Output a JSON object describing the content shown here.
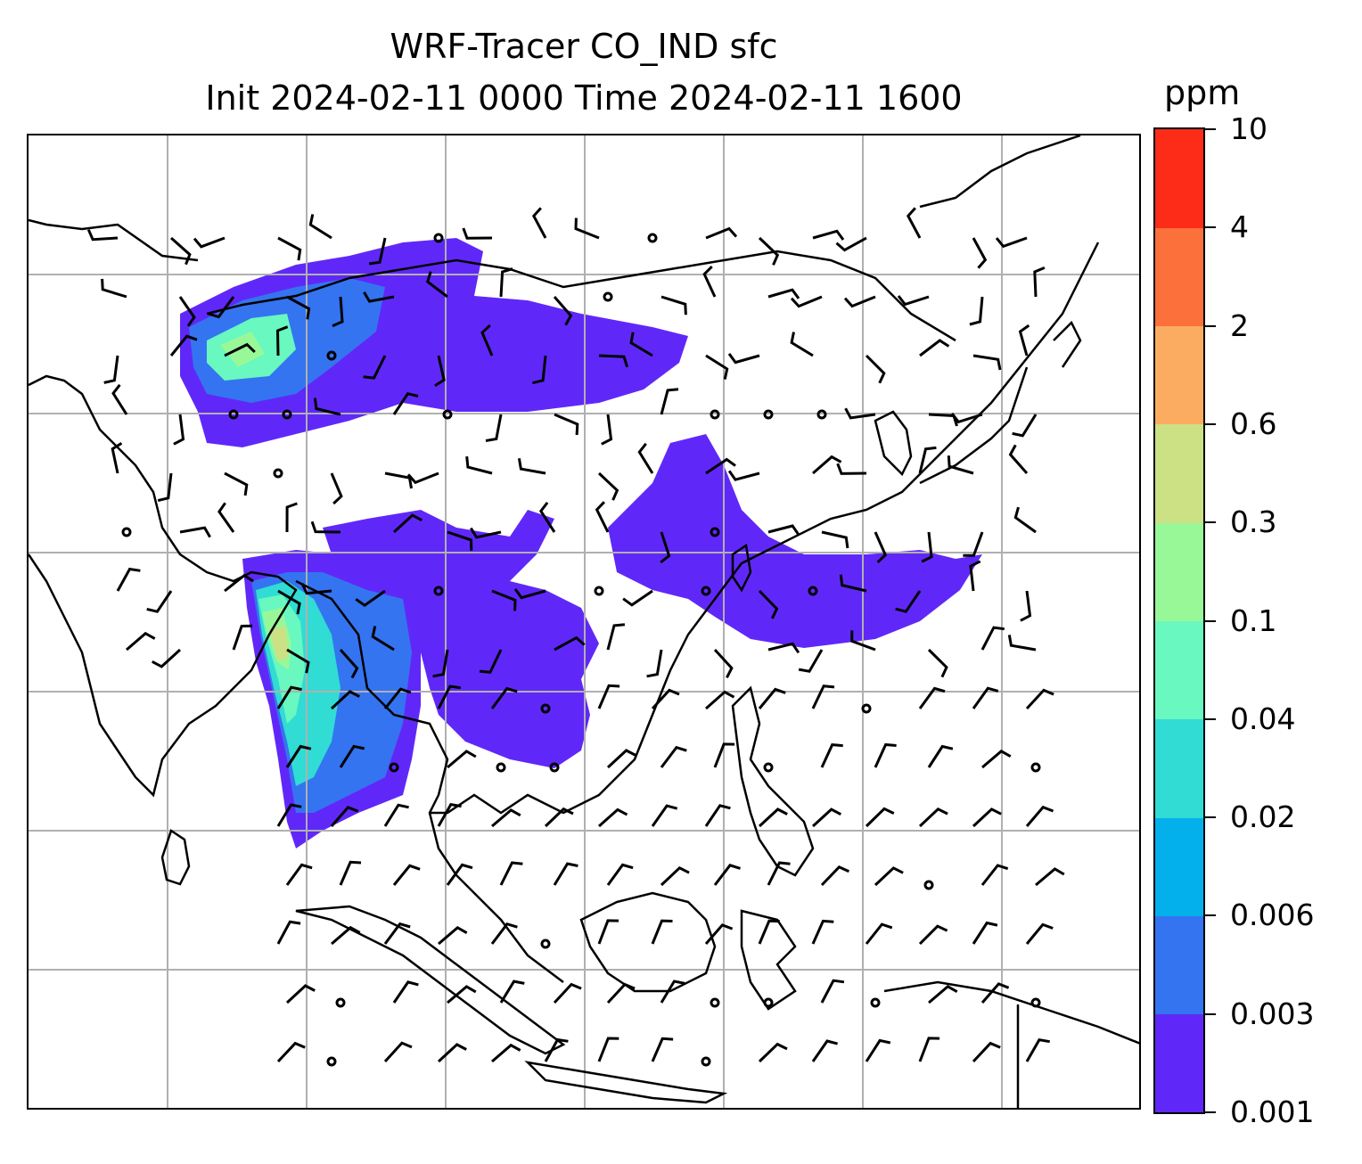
{
  "title": {
    "line1": "WRF-Tracer CO_IND sfc",
    "line2": "Init 2024-02-11 0000 Time 2024-02-11 1600"
  },
  "colorbar": {
    "unit_label": "ppm",
    "levels": [
      "0.001",
      "0.003",
      "0.006",
      "0.02",
      "0.04",
      "0.1",
      "0.3",
      "0.6",
      "2",
      "4",
      "10"
    ],
    "colors": [
      "#6028f8",
      "#3474f0",
      "#04b0ec",
      "#30dcd4",
      "#68f8c0",
      "#98f898",
      "#cce084",
      "#fcac60",
      "#fc703c",
      "#fc2c18"
    ]
  },
  "map": {
    "gridlines": true,
    "gridline_color": "#b0b0b0",
    "coastline_color": "#000000",
    "wind_barb_color": "#000000",
    "no_data_color": "#ffffff"
  }
}
